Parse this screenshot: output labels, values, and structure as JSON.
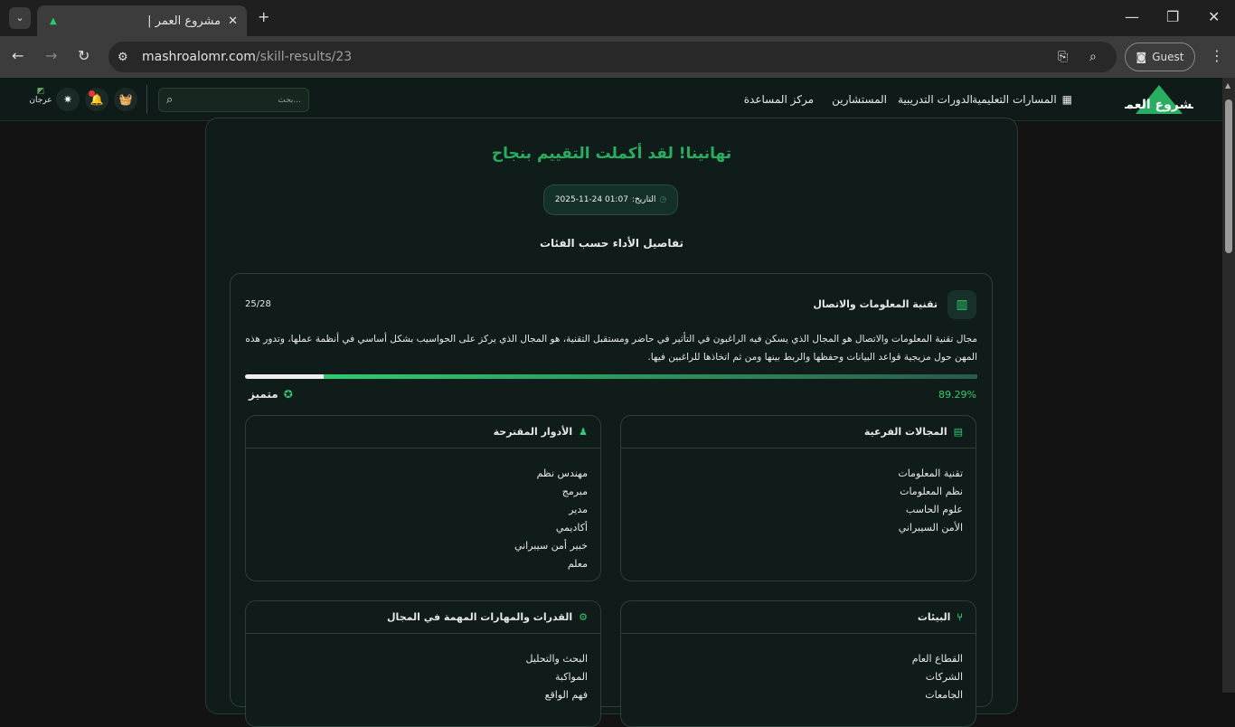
{
  "browser": {
    "tab_title": "مشروع العمر |",
    "url_domain": "mashroalomr.com",
    "url_path": "/skill-results/23",
    "guest_label": "Guest"
  },
  "header": {
    "nav": [
      "المسارات التعليمية",
      "الدورات التدريبية",
      "المستشارين",
      "مركز المساعدة"
    ],
    "search_placeholder": "بحث...",
    "profile_label": "عرجان",
    "logo_text": "مشروع العمر"
  },
  "result": {
    "title": "تهانينا! لقد أكملت التقييم بنجاح",
    "date_label": "التاريخ:",
    "date_value": "2025-11-24 01:07",
    "section_title": "تفاصيل الأداء حسب الفئات"
  },
  "category": {
    "title": "تقنية المعلومات والاتصال",
    "score": "25/28",
    "description": "مجال تقنية المعلومات والاتصال هو المجال الذي يسكن فيه الراغبون في التأثير في حاضر ومستقبل التقنية، هو المجال الذي يركز على الحواسيب بشكل أساسي في أنظمة عملها، وتدور هذه المهن حول مزيجية قواعد البيانات وحفظها والربط بينها ومن ثم اتخاذها للراغبين فيها.",
    "percent": "89.29%",
    "progress": 89.29,
    "level": "متميز",
    "accent": "#2ecc71"
  },
  "cards": {
    "subfields": {
      "title": "المجالات الفرعية",
      "items": [
        "تقنية المعلومات",
        "نظم المعلومات",
        "علوم الحاسب",
        "الأمن السيبراني"
      ]
    },
    "roles": {
      "title": "الأدوار المقترحة",
      "items": [
        "مهندس نظم",
        "مبرمج",
        "مدير",
        "أكاديمي",
        "خبير أمن سيبراني",
        "معلم"
      ]
    },
    "environments": {
      "title": "البيئات",
      "items": [
        "القطاع العام",
        "الشركات",
        "الجامعات"
      ]
    },
    "skills": {
      "title": "القدرات والمهارات المهمة في المجال",
      "items": [
        "البحث والتحليل",
        "المواكبة",
        "فهم الواقع"
      ]
    }
  }
}
